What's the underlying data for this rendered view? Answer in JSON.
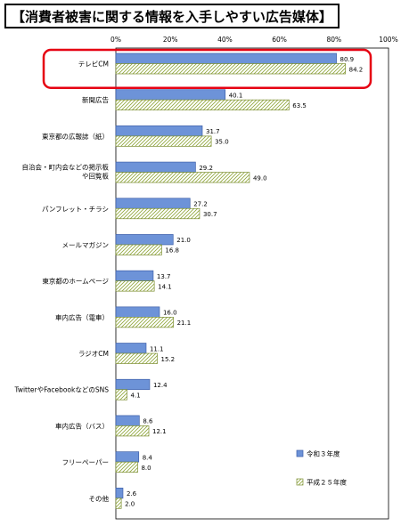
{
  "chart_data": {
    "type": "bar",
    "orientation": "horizontal",
    "title": "【消費者被害に関する情報を入手しやすい広告媒体】",
    "categories": [
      [
        "テレビCM"
      ],
      [
        "新聞広告"
      ],
      [
        "東京都の広報誌（紙）"
      ],
      [
        "自治会・町内会などの掲示板",
        "や回覧板"
      ],
      [
        "パンフレット・チラシ"
      ],
      [
        "メールマガジン"
      ],
      [
        "東京都のホームページ"
      ],
      [
        "車内広告（電車）"
      ],
      [
        "ラジオCM"
      ],
      [
        "TwitterやFacebookなどのSNS"
      ],
      [
        "車内広告（バス）"
      ],
      [
        "フリーペーパー"
      ],
      [
        "その他"
      ]
    ],
    "series": [
      {
        "name": "令和３年度",
        "values": [
          80.9,
          40.1,
          31.7,
          29.2,
          27.2,
          21.0,
          13.7,
          16.0,
          11.1,
          12.4,
          8.6,
          8.4,
          2.6
        ],
        "color": "#6d93d8",
        "pattern": "solid"
      },
      {
        "name": "平成２５年度",
        "values": [
          84.2,
          63.5,
          35.0,
          49.0,
          30.7,
          16.8,
          14.1,
          21.1,
          15.2,
          4.1,
          12.1,
          8.0,
          2.0
        ],
        "color": "#a5b84a",
        "pattern": "hatch"
      }
    ],
    "xlim": [
      0,
      100
    ],
    "x_ticks": [
      "0%",
      "20%",
      "40%",
      "60%",
      "80%",
      "100%"
    ],
    "highlight_category_index": 0,
    "highlight_color": "#e60012",
    "legend_position": "bottom-right",
    "grid": false
  }
}
